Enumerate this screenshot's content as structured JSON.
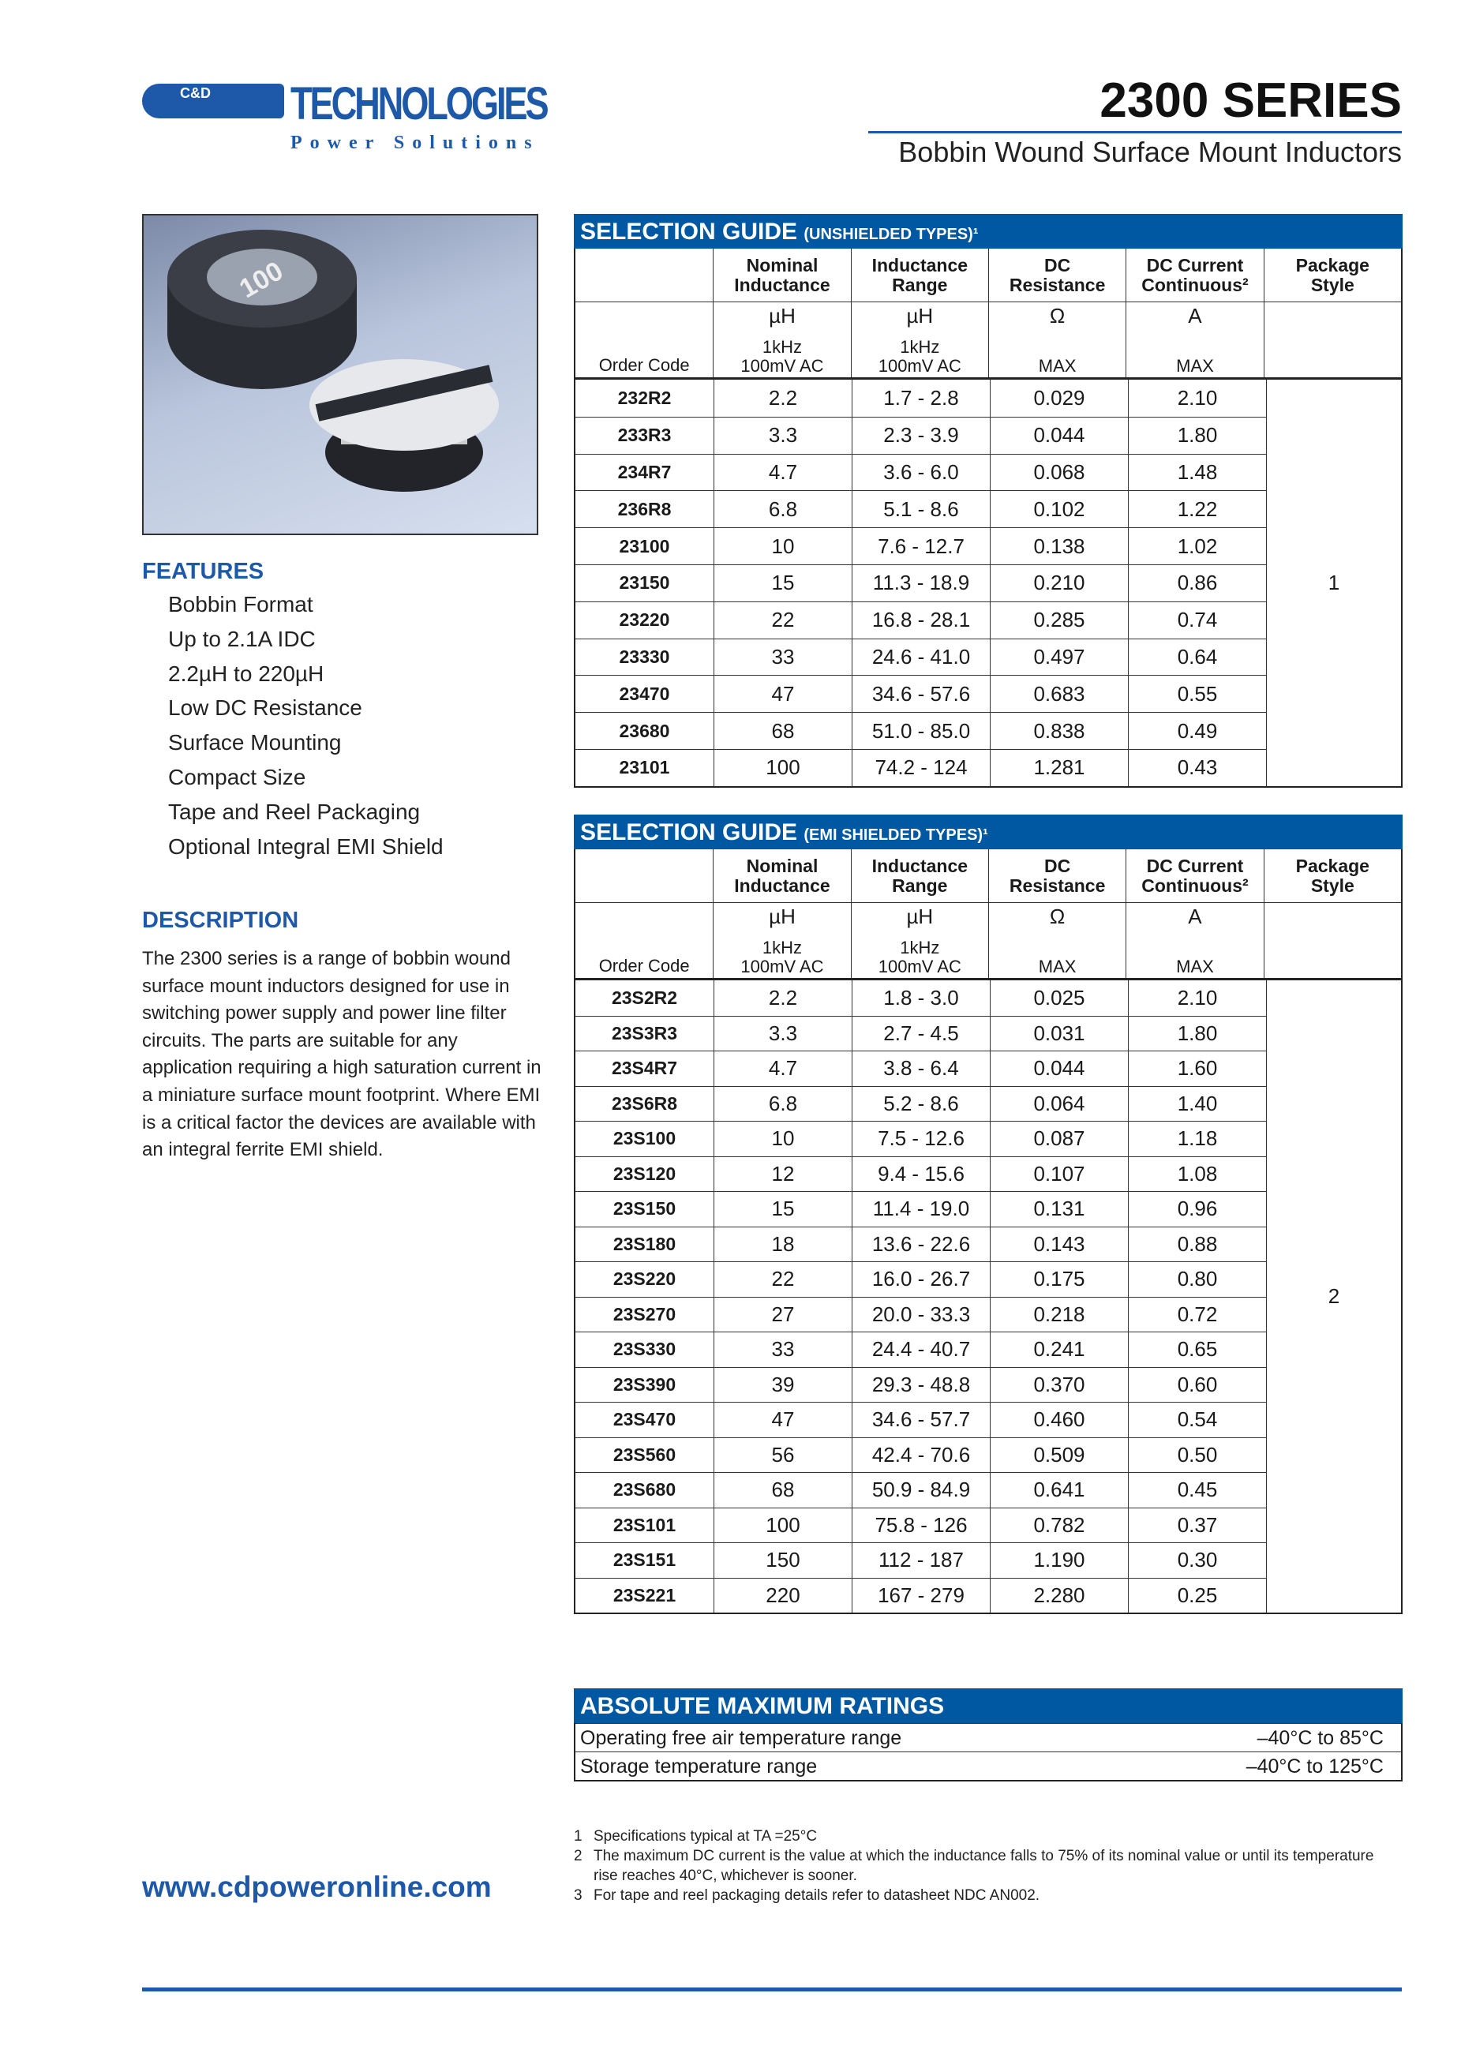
{
  "brand": {
    "logo_text": "C&D TECHNOLOGIES",
    "tagline": "Power Solutions"
  },
  "header": {
    "title": "2300 SERIES",
    "subtitle": "Bobbin Wound Surface Mount Inductors"
  },
  "photo": {
    "label": "100"
  },
  "features": {
    "heading": "FEATURES",
    "items": [
      "Bobbin Format",
      "Up to 2.1A IDC",
      "2.2µH to 220µH",
      "Low DC Resistance",
      "Surface Mounting",
      "Compact Size",
      "Tape and Reel Packaging",
      "Optional Integral EMI Shield"
    ]
  },
  "description": {
    "heading": "DESCRIPTION",
    "text": "The 2300 series is a range of bobbin wound surface mount inductors designed for use in switching power supply and power line filter circuits. The parts are suitable for any application requiring a high saturation current in a miniature surface mount footprint. Where EMI is a critical factor the devices are available with an integral ferrite EMI shield."
  },
  "columns": [
    {
      "h": [
        "",
        ""
      ],
      "u": [
        "",
        "",
        ""
      ]
    },
    {
      "h": [
        "Nominal",
        "Inductance"
      ],
      "u": [
        "µH",
        "1kHz",
        "100mV AC"
      ]
    },
    {
      "h": [
        "Inductance",
        "Range"
      ],
      "u": [
        "µH",
        "1kHz",
        "100mV AC"
      ]
    },
    {
      "h": [
        "DC",
        "Resistance"
      ],
      "u": [
        "Ω",
        "",
        "MAX"
      ]
    },
    {
      "h": [
        "DC Current",
        "Continuous²"
      ],
      "u": [
        "A",
        "",
        "MAX"
      ]
    },
    {
      "h": [
        "Package",
        "Style"
      ],
      "u": [
        "",
        "",
        ""
      ]
    }
  ],
  "order_code_label": "Order Code",
  "unshielded": {
    "title": "SELECTION GUIDE",
    "subtitle": "(UNSHIELDED TYPES)¹",
    "package": "1",
    "rows": [
      [
        "232R2",
        "2.2",
        "1.7 - 2.8",
        "0.029",
        "2.10"
      ],
      [
        "233R3",
        "3.3",
        "2.3 - 3.9",
        "0.044",
        "1.80"
      ],
      [
        "234R7",
        "4.7",
        "3.6 - 6.0",
        "0.068",
        "1.48"
      ],
      [
        "236R8",
        "6.8",
        "5.1 - 8.6",
        "0.102",
        "1.22"
      ],
      [
        "23100",
        "10",
        "7.6 - 12.7",
        "0.138",
        "1.02"
      ],
      [
        "23150",
        "15",
        "11.3 - 18.9",
        "0.210",
        "0.86"
      ],
      [
        "23220",
        "22",
        "16.8 - 28.1",
        "0.285",
        "0.74"
      ],
      [
        "23330",
        "33",
        "24.6 - 41.0",
        "0.497",
        "0.64"
      ],
      [
        "23470",
        "47",
        "34.6 - 57.6",
        "0.683",
        "0.55"
      ],
      [
        "23680",
        "68",
        "51.0 - 85.0",
        "0.838",
        "0.49"
      ],
      [
        "23101",
        "100",
        "74.2 - 124",
        "1.281",
        "0.43"
      ]
    ]
  },
  "shielded": {
    "title": "SELECTION GUIDE",
    "subtitle": "(EMI SHIELDED TYPES)¹",
    "package": "2",
    "rows": [
      [
        "23S2R2",
        "2.2",
        "1.8 - 3.0",
        "0.025",
        "2.10"
      ],
      [
        "23S3R3",
        "3.3",
        "2.7 - 4.5",
        "0.031",
        "1.80"
      ],
      [
        "23S4R7",
        "4.7",
        "3.8 - 6.4",
        "0.044",
        "1.60"
      ],
      [
        "23S6R8",
        "6.8",
        "5.2 - 8.6",
        "0.064",
        "1.40"
      ],
      [
        "23S100",
        "10",
        "7.5 - 12.6",
        "0.087",
        "1.18"
      ],
      [
        "23S120",
        "12",
        "9.4 - 15.6",
        "0.107",
        "1.08"
      ],
      [
        "23S150",
        "15",
        "11.4 - 19.0",
        "0.131",
        "0.96"
      ],
      [
        "23S180",
        "18",
        "13.6 - 22.6",
        "0.143",
        "0.88"
      ],
      [
        "23S220",
        "22",
        "16.0 - 26.7",
        "0.175",
        "0.80"
      ],
      [
        "23S270",
        "27",
        "20.0 - 33.3",
        "0.218",
        "0.72"
      ],
      [
        "23S330",
        "33",
        "24.4 - 40.7",
        "0.241",
        "0.65"
      ],
      [
        "23S390",
        "39",
        "29.3 - 48.8",
        "0.370",
        "0.60"
      ],
      [
        "23S470",
        "47",
        "34.6 - 57.7",
        "0.460",
        "0.54"
      ],
      [
        "23S560",
        "56",
        "42.4 - 70.6",
        "0.509",
        "0.50"
      ],
      [
        "23S680",
        "68",
        "50.9 - 84.9",
        "0.641",
        "0.45"
      ],
      [
        "23S101",
        "100",
        "75.8 - 126",
        "0.782",
        "0.37"
      ],
      [
        "23S151",
        "150",
        "112 - 187",
        "1.190",
        "0.30"
      ],
      [
        "23S221",
        "220",
        "167 - 279",
        "2.280",
        "0.25"
      ]
    ]
  },
  "ratings": {
    "title": "ABSOLUTE MAXIMUM RATINGS",
    "rows": [
      [
        "Operating free air temperature range",
        "–40°C to 85°C"
      ],
      [
        "Storage temperature range",
        "–40°C to 125°C"
      ]
    ]
  },
  "footnotes": [
    [
      "1",
      "Specifications typical at TA =25°C"
    ],
    [
      "2",
      "The maximum DC current is the value at which the inductance falls to 75% of its nominal value or until its temperature rise reaches 40°C, whichever is sooner."
    ],
    [
      "3",
      "For tape and reel packaging details refer to datasheet NDC AN002."
    ]
  ],
  "website": "www.cdpoweronline.com",
  "colors": {
    "brand_blue": "#0058a3"
  }
}
